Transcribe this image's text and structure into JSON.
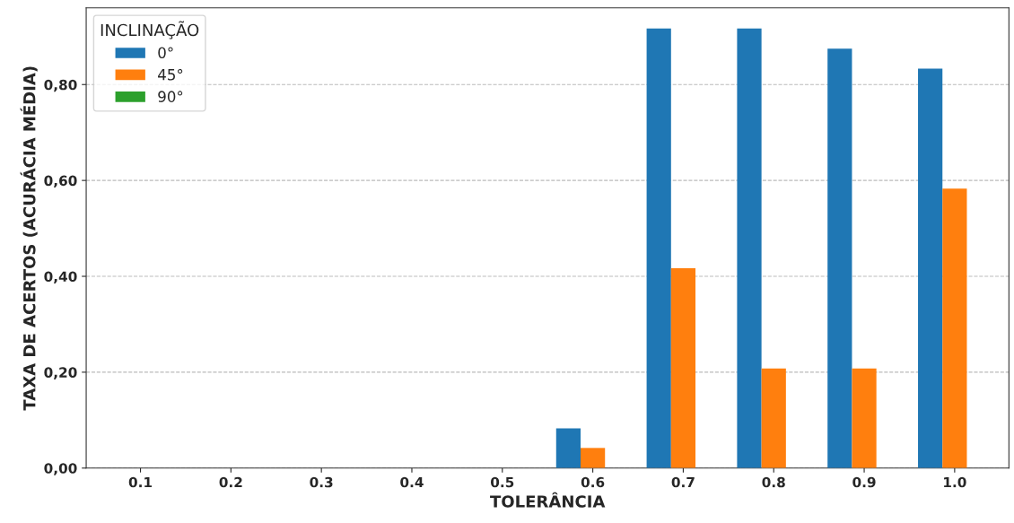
{
  "chart_data": {
    "type": "bar",
    "xlabel": "TOLERÂNCIA",
    "ylabel": "TAXA DE ACERTOS (ACURÁCIA MÉDIA)",
    "legend_title": "INCLINAÇÃO",
    "categories": [
      "0.1",
      "0.2",
      "0.3",
      "0.4",
      "0.5",
      "0.6",
      "0.7",
      "0.8",
      "0.9",
      "1.0"
    ],
    "series": [
      {
        "name": "0°",
        "color": "#1f77b4",
        "values": [
          0,
          0,
          0,
          0,
          0,
          0.083,
          0.917,
          0.917,
          0.875,
          0.833
        ]
      },
      {
        "name": "45°",
        "color": "#ff7f0e",
        "values": [
          0,
          0,
          0,
          0,
          0,
          0.042,
          0.417,
          0.208,
          0.208,
          0.583
        ]
      },
      {
        "name": "90°",
        "color": "#2ca02c",
        "values": [
          0,
          0,
          0,
          0,
          0,
          0,
          0,
          0,
          0,
          0
        ]
      }
    ],
    "ylim": [
      0,
      0.96
    ],
    "yticks": [
      {
        "value": 0,
        "label": "0,00"
      },
      {
        "value": 0.2,
        "label": "0,20"
      },
      {
        "value": 0.4,
        "label": "0,40"
      },
      {
        "value": 0.6,
        "label": "0,60"
      },
      {
        "value": 0.8,
        "label": "0,80"
      }
    ],
    "grid": "y",
    "legend": "top left"
  }
}
